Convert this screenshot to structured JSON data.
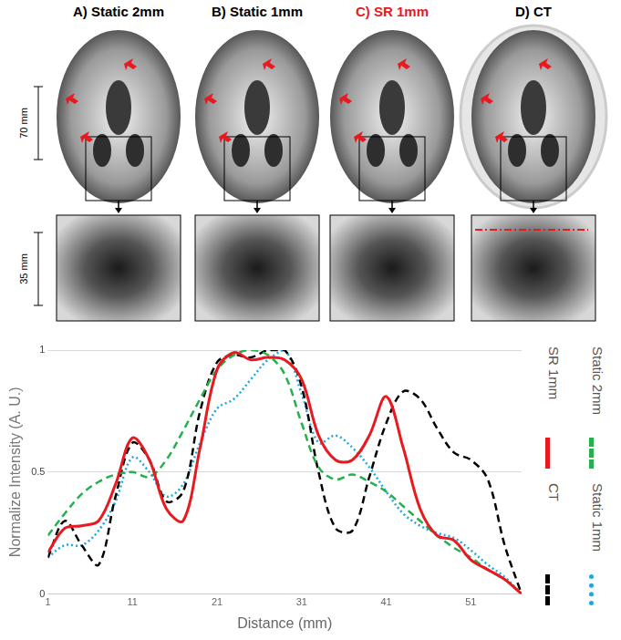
{
  "panels": [
    {
      "title": "A) Static 2mm",
      "color": "#000000"
    },
    {
      "title": "B) Static 1mm",
      "color": "#000000"
    },
    {
      "title": "C) SR 1mm",
      "color": "#e8191f"
    },
    {
      "title": "D) CT",
      "color": "#000000"
    }
  ],
  "scale_bars": [
    "70 mm",
    "35 mm"
  ],
  "chart_data": {
    "type": "line",
    "x_label": "Distance (mm)",
    "y_label": "Normalize Intensity (A. U.)",
    "x": [
      1,
      3,
      5,
      7,
      9,
      11,
      13,
      15,
      17,
      19,
      21,
      23,
      25,
      27,
      29,
      31,
      33,
      35,
      37,
      39,
      41,
      43,
      45,
      47,
      49,
      51,
      53,
      55,
      57
    ],
    "xlim": [
      1,
      57
    ],
    "xticks": [
      1,
      11,
      21,
      31,
      41,
      51
    ],
    "ylim": [
      0,
      1
    ],
    "yticks": [
      0,
      0.5,
      1
    ],
    "grid": "y",
    "legend": "right",
    "series": [
      {
        "name": "SR 1mm",
        "color": "#e8191f",
        "line_style": "solid",
        "values": [
          0.17,
          0.27,
          0.28,
          0.3,
          0.45,
          0.64,
          0.55,
          0.35,
          0.3,
          0.6,
          0.92,
          0.99,
          0.96,
          0.97,
          0.96,
          0.88,
          0.65,
          0.55,
          0.55,
          0.65,
          0.81,
          0.6,
          0.35,
          0.24,
          0.22,
          0.14,
          0.1,
          0.06,
          0
        ]
      },
      {
        "name": "Static 2mm",
        "color": "#22b14c",
        "line_style": "dashed",
        "values": [
          0.24,
          0.33,
          0.41,
          0.46,
          0.49,
          0.5,
          0.48,
          0.55,
          0.67,
          0.8,
          0.92,
          0.98,
          1.0,
          0.98,
          0.9,
          0.7,
          0.52,
          0.47,
          0.49,
          0.46,
          0.42,
          0.36,
          0.3,
          0.24,
          0.19,
          0.15,
          0.1,
          0.06,
          0
        ]
      },
      {
        "name": "CT",
        "color": "#000000",
        "line_style": "dashed",
        "values": [
          0.15,
          0.3,
          0.2,
          0.12,
          0.4,
          0.62,
          0.55,
          0.38,
          0.42,
          0.75,
          0.95,
          0.98,
          0.97,
          1.0,
          1.0,
          0.85,
          0.5,
          0.27,
          0.26,
          0.48,
          0.7,
          0.83,
          0.8,
          0.68,
          0.58,
          0.55,
          0.47,
          0.2,
          0
        ]
      },
      {
        "name": "Static 1mm",
        "color": "#1fa8e0",
        "line_style": "dotted",
        "values": [
          0.15,
          0.2,
          0.2,
          0.26,
          0.38,
          0.56,
          0.5,
          0.4,
          0.45,
          0.62,
          0.76,
          0.8,
          0.88,
          0.96,
          1.0,
          0.82,
          0.62,
          0.65,
          0.6,
          0.52,
          0.42,
          0.33,
          0.28,
          0.25,
          0.23,
          0.18,
          0.12,
          0.07,
          0
        ]
      }
    ]
  }
}
